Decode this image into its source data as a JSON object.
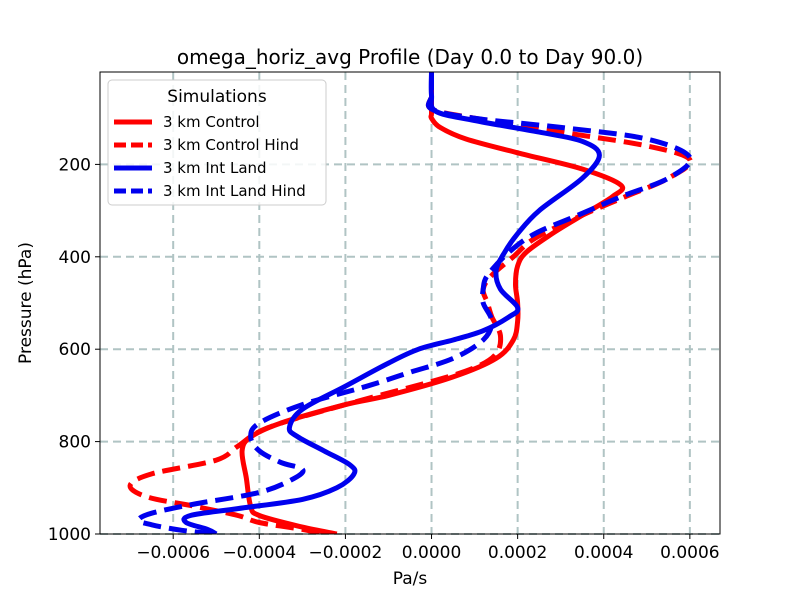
{
  "chart_data": {
    "type": "line",
    "title": "omega_horiz_avg Profile (Day 0.0 to Day 90.0)",
    "xlabel": "Pa/s",
    "ylabel": "Pressure (hPa)",
    "xlim": [
      -0.00077,
      0.00067
    ],
    "ylim": [
      1000,
      0
    ],
    "y_inverted": true,
    "x_ticks": [
      -0.0006,
      -0.0004,
      -0.0002,
      0.0,
      0.0002,
      0.0004,
      0.0006
    ],
    "x_tick_labels": [
      "−0.0006",
      "−0.0004",
      "−0.0002",
      "0.0000",
      "0.0002",
      "0.0004",
      "0.0006"
    ],
    "y_ticks": [
      200,
      400,
      600,
      800,
      1000
    ],
    "y_tick_labels": [
      "200",
      "400",
      "600",
      "800",
      "1000"
    ],
    "grid": true,
    "legend": {
      "title": "Simulations",
      "position": "upper-left"
    },
    "series": [
      {
        "name": "3 km Control",
        "color": "#ff0000",
        "style": "solid",
        "points": [
          [
            0.0,
            0
          ],
          [
            0.0,
            50
          ],
          [
            0.0,
            90
          ],
          [
            0.0,
            100
          ],
          [
            2e-05,
            120
          ],
          [
            8e-05,
            145
          ],
          [
            0.0002,
            175
          ],
          [
            0.00035,
            210
          ],
          [
            0.00044,
            245
          ],
          [
            0.00042,
            270
          ],
          [
            0.00035,
            310
          ],
          [
            0.00028,
            350
          ],
          [
            0.00022,
            390
          ],
          [
            0.0002,
            420
          ],
          [
            0.000195,
            460
          ],
          [
            0.0002,
            500
          ],
          [
            0.0002,
            540
          ],
          [
            0.00019,
            580
          ],
          [
            0.00015,
            620
          ],
          [
            5e-05,
            660
          ],
          [
            -0.0001,
            700
          ],
          [
            -0.0002,
            720
          ],
          [
            -0.00035,
            760
          ],
          [
            -0.00042,
            790
          ],
          [
            -0.00044,
            820
          ],
          [
            -0.00043,
            880
          ],
          [
            -0.00042,
            940
          ],
          [
            -0.0004,
            960
          ],
          [
            -0.0003,
            985
          ],
          [
            -0.00022,
            1000
          ]
        ]
      },
      {
        "name": "3 km Control Hind",
        "color": "#ff0000",
        "style": "dashed",
        "points": [
          [
            0.0,
            0
          ],
          [
            0.0,
            50
          ],
          [
            0.0,
            80
          ],
          [
            0.0001,
            100
          ],
          [
            0.0003,
            130
          ],
          [
            0.0005,
            160
          ],
          [
            0.0006,
            190
          ],
          [
            0.00055,
            230
          ],
          [
            0.00045,
            270
          ],
          [
            0.00035,
            310
          ],
          [
            0.00024,
            360
          ],
          [
            0.00019,
            400
          ],
          [
            0.00014,
            440
          ],
          [
            0.00012,
            470
          ],
          [
            0.00013,
            500
          ],
          [
            0.00014,
            530
          ],
          [
            0.00016,
            570
          ],
          [
            0.00015,
            610
          ],
          [
            0.0001,
            640
          ],
          [
            0.0,
            670
          ],
          [
            -0.0002,
            720
          ],
          [
            -0.00038,
            770
          ],
          [
            -0.00045,
            810
          ],
          [
            -0.0005,
            840
          ],
          [
            -0.00065,
            870
          ],
          [
            -0.0007,
            895
          ],
          [
            -0.00066,
            920
          ],
          [
            -0.00055,
            940
          ],
          [
            -0.00045,
            960
          ],
          [
            -0.0004,
            975
          ],
          [
            -0.0003,
            990
          ],
          [
            -0.00025,
            1000
          ]
        ]
      },
      {
        "name": "3 km Int Land",
        "color": "#0000ee",
        "style": "solid",
        "points": [
          [
            0.0,
            0
          ],
          [
            0.0,
            50
          ],
          [
            1e-05,
            85
          ],
          [
            0.0001,
            105
          ],
          [
            0.00025,
            130
          ],
          [
            0.00035,
            150
          ],
          [
            0.00039,
            180
          ],
          [
            0.00035,
            230
          ],
          [
            0.00025,
            300
          ],
          [
            0.0002,
            350
          ],
          [
            0.00017,
            390
          ],
          [
            0.00015,
            430
          ],
          [
            0.00016,
            470
          ],
          [
            0.0002,
            510
          ],
          [
            0.00018,
            530
          ],
          [
            0.00012,
            560
          ],
          [
            5e-05,
            580
          ],
          [
            -3e-05,
            600
          ],
          [
            -0.0001,
            630
          ],
          [
            -0.0002,
            680
          ],
          [
            -0.0003,
            730
          ],
          [
            -0.00033,
            770
          ],
          [
            -0.00031,
            790
          ],
          [
            -0.00025,
            820
          ],
          [
            -0.00019,
            850
          ],
          [
            -0.00018,
            870
          ],
          [
            -0.00022,
            900
          ],
          [
            -0.0003,
            925
          ],
          [
            -0.00045,
            945
          ],
          [
            -0.00056,
            960
          ],
          [
            -0.00057,
            975
          ],
          [
            -0.00052,
            990
          ],
          [
            -0.0005,
            1000
          ]
        ]
      },
      {
        "name": "3 km Int Land Hind",
        "color": "#0000ee",
        "style": "dashed",
        "points": [
          [
            0.0,
            0
          ],
          [
            0.0,
            50
          ],
          [
            0.0,
            80
          ],
          [
            0.0001,
            100
          ],
          [
            0.0003,
            120
          ],
          [
            0.0005,
            145
          ],
          [
            0.0006,
            185
          ],
          [
            0.00055,
            230
          ],
          [
            0.00044,
            270
          ],
          [
            0.00034,
            310
          ],
          [
            0.00024,
            350
          ],
          [
            0.00018,
            390
          ],
          [
            0.00013,
            440
          ],
          [
            0.00012,
            470
          ],
          [
            0.00012,
            500
          ],
          [
            0.00014,
            540
          ],
          [
            0.00012,
            580
          ],
          [
            5e-05,
            620
          ],
          [
            -5e-05,
            650
          ],
          [
            -0.00015,
            680
          ],
          [
            -0.0003,
            720
          ],
          [
            -0.0004,
            760
          ],
          [
            -0.00042,
            790
          ],
          [
            -0.0004,
            820
          ],
          [
            -0.00035,
            845
          ],
          [
            -0.0003,
            860
          ],
          [
            -0.00032,
            880
          ],
          [
            -0.0004,
            910
          ],
          [
            -0.00055,
            935
          ],
          [
            -0.00065,
            955
          ],
          [
            -0.00068,
            970
          ],
          [
            -0.00065,
            980
          ],
          [
            -0.00058,
            992
          ],
          [
            -0.0005,
            1000
          ]
        ]
      }
    ]
  }
}
